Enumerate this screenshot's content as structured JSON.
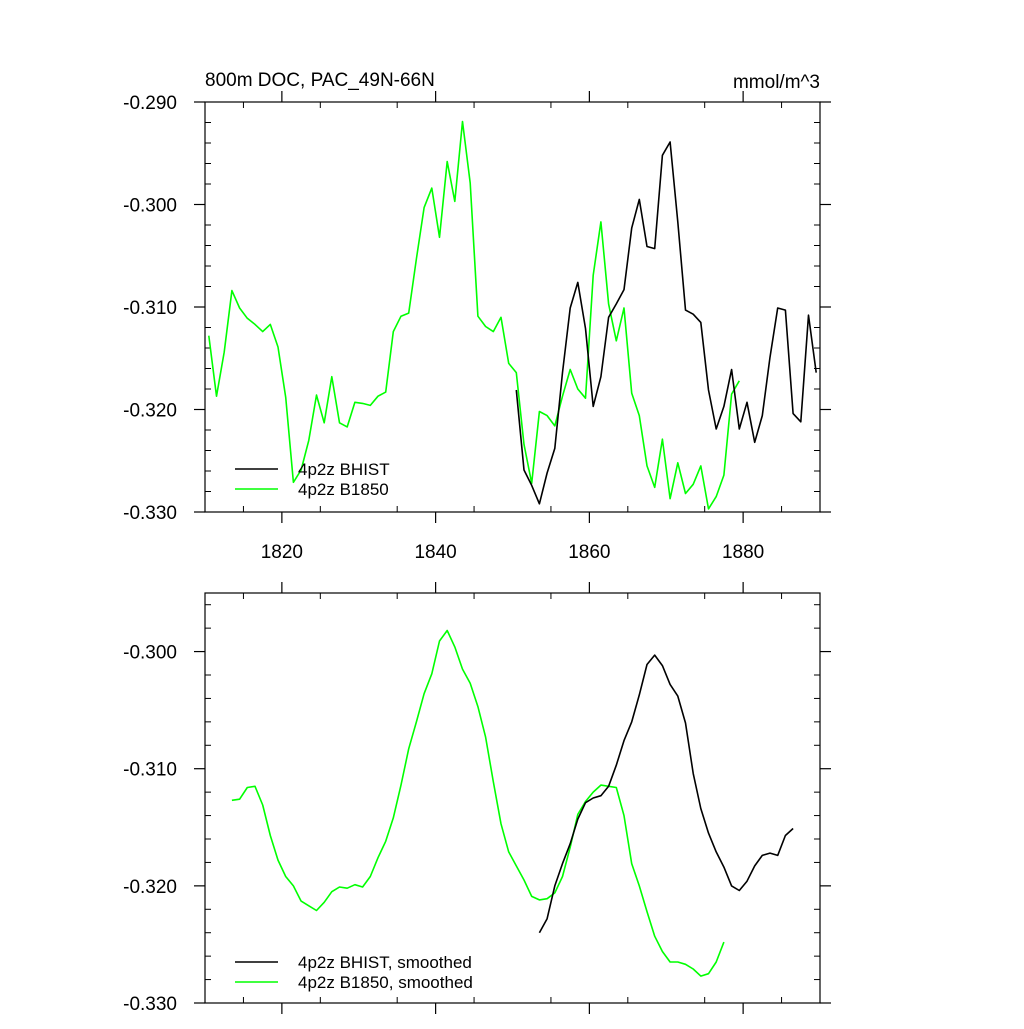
{
  "chart_data": [
    {
      "type": "line",
      "title": "800m DOC, PAC_49N-66N",
      "units_label": "mmol/m^3",
      "xlim": [
        1810,
        1890
      ],
      "ylim": [
        -0.33,
        -0.29
      ],
      "x_ticks": [
        1820,
        1840,
        1860,
        1880
      ],
      "x_tick_labels": [
        "1820",
        "1840",
        "1860",
        "1880"
      ],
      "y_ticks": [
        -0.29,
        -0.3,
        -0.31,
        -0.32,
        -0.33
      ],
      "y_tick_labels": [
        "-0.290",
        "-0.300",
        "-0.310",
        "-0.320",
        "-0.330"
      ],
      "legend_position": "bottom-left",
      "series": [
        {
          "name": "4p2z BHIST",
          "color": "#000000",
          "points": [
            [
              1850.5,
              -0.3181
            ],
            [
              1851.5,
              -0.3259
            ],
            [
              1852.5,
              -0.3274
            ],
            [
              1853.5,
              -0.3292
            ],
            [
              1854.5,
              -0.3262
            ],
            [
              1855.5,
              -0.3238
            ],
            [
              1856.5,
              -0.3164
            ],
            [
              1857.5,
              -0.3101
            ],
            [
              1858.5,
              -0.3076
            ],
            [
              1859.5,
              -0.3121
            ],
            [
              1860.5,
              -0.3197
            ],
            [
              1861.5,
              -0.3168
            ],
            [
              1862.5,
              -0.311
            ],
            [
              1863.5,
              -0.3097
            ],
            [
              1864.5,
              -0.3083
            ],
            [
              1865.5,
              -0.3023
            ],
            [
              1866.5,
              -0.2995
            ],
            [
              1867.5,
              -0.3041
            ],
            [
              1868.5,
              -0.3043
            ],
            [
              1869.5,
              -0.2952
            ],
            [
              1870.5,
              -0.2939
            ],
            [
              1871.5,
              -0.3017
            ],
            [
              1872.5,
              -0.3103
            ],
            [
              1873.5,
              -0.3107
            ],
            [
              1874.5,
              -0.3115
            ],
            [
              1875.5,
              -0.3181
            ],
            [
              1876.5,
              -0.3219
            ],
            [
              1877.5,
              -0.3197
            ],
            [
              1878.5,
              -0.3161
            ],
            [
              1879.5,
              -0.3219
            ],
            [
              1880.5,
              -0.3193
            ],
            [
              1881.5,
              -0.3232
            ],
            [
              1882.5,
              -0.3206
            ],
            [
              1883.5,
              -0.3149
            ],
            [
              1884.5,
              -0.3101
            ],
            [
              1885.5,
              -0.3103
            ],
            [
              1886.5,
              -0.3204
            ],
            [
              1887.5,
              -0.3212
            ],
            [
              1888.5,
              -0.3108
            ],
            [
              1889.5,
              -0.3164
            ]
          ]
        },
        {
          "name": "4p2z B1850",
          "color": "#00ff00",
          "points": [
            [
              1810.5,
              -0.3128
            ],
            [
              1811.5,
              -0.3187
            ],
            [
              1812.5,
              -0.3144
            ],
            [
              1813.5,
              -0.3084
            ],
            [
              1814.5,
              -0.3101
            ],
            [
              1815.5,
              -0.3111
            ],
            [
              1816.5,
              -0.3117
            ],
            [
              1817.5,
              -0.3124
            ],
            [
              1818.5,
              -0.3117
            ],
            [
              1819.5,
              -0.3139
            ],
            [
              1820.5,
              -0.3188
            ],
            [
              1821.5,
              -0.3271
            ],
            [
              1822.5,
              -0.3259
            ],
            [
              1823.5,
              -0.323
            ],
            [
              1824.5,
              -0.3186
            ],
            [
              1825.5,
              -0.3213
            ],
            [
              1826.5,
              -0.3168
            ],
            [
              1827.5,
              -0.3213
            ],
            [
              1828.5,
              -0.3217
            ],
            [
              1829.5,
              -0.3193
            ],
            [
              1830.5,
              -0.3194
            ],
            [
              1831.5,
              -0.3196
            ],
            [
              1832.5,
              -0.3187
            ],
            [
              1833.5,
              -0.3183
            ],
            [
              1834.5,
              -0.3124
            ],
            [
              1835.5,
              -0.3109
            ],
            [
              1836.5,
              -0.3106
            ],
            [
              1837.5,
              -0.3053
            ],
            [
              1838.5,
              -0.3003
            ],
            [
              1839.5,
              -0.2984
            ],
            [
              1840.5,
              -0.3032
            ],
            [
              1841.5,
              -0.2958
            ],
            [
              1842.5,
              -0.2997
            ],
            [
              1843.5,
              -0.2919
            ],
            [
              1844.5,
              -0.2979
            ],
            [
              1845.5,
              -0.3109
            ],
            [
              1846.5,
              -0.3119
            ],
            [
              1847.5,
              -0.3124
            ],
            [
              1848.5,
              -0.311
            ],
            [
              1849.5,
              -0.3155
            ],
            [
              1850.5,
              -0.3164
            ],
            [
              1851.5,
              -0.3234
            ],
            [
              1852.5,
              -0.3272
            ],
            [
              1853.5,
              -0.3202
            ],
            [
              1854.5,
              -0.3206
            ],
            [
              1855.5,
              -0.3216
            ],
            [
              1856.5,
              -0.3187
            ],
            [
              1857.5,
              -0.3161
            ],
            [
              1858.5,
              -0.318
            ],
            [
              1859.5,
              -0.3189
            ],
            [
              1860.5,
              -0.3069
            ],
            [
              1861.5,
              -0.3017
            ],
            [
              1862.5,
              -0.3097
            ],
            [
              1863.5,
              -0.3133
            ],
            [
              1864.5,
              -0.3101
            ],
            [
              1865.5,
              -0.3184
            ],
            [
              1866.5,
              -0.3206
            ],
            [
              1867.5,
              -0.3255
            ],
            [
              1868.5,
              -0.3276
            ],
            [
              1869.5,
              -0.3229
            ],
            [
              1870.5,
              -0.3287
            ],
            [
              1871.5,
              -0.3252
            ],
            [
              1872.5,
              -0.3282
            ],
            [
              1873.5,
              -0.3273
            ],
            [
              1874.5,
              -0.3255
            ],
            [
              1875.5,
              -0.3297
            ],
            [
              1876.5,
              -0.3285
            ],
            [
              1877.5,
              -0.3264
            ],
            [
              1878.5,
              -0.3185
            ],
            [
              1879.5,
              -0.3172
            ]
          ]
        }
      ]
    },
    {
      "type": "line",
      "xlim": [
        1810,
        1890
      ],
      "ylim": [
        -0.33,
        -0.295
      ],
      "x_ticks": [
        1820,
        1840,
        1860,
        1880
      ],
      "y_ticks": [
        -0.3,
        -0.31,
        -0.32,
        -0.33
      ],
      "y_tick_labels": [
        "-0.300",
        "-0.310",
        "-0.320",
        "-0.330"
      ],
      "legend_position": "bottom-left",
      "series": [
        {
          "name": "4p2z BHIST, smoothed",
          "color": "#000000",
          "points": [
            [
              1853.5,
              -0.324
            ],
            [
              1854.5,
              -0.3228
            ],
            [
              1855.5,
              -0.32
            ],
            [
              1856.5,
              -0.3181
            ],
            [
              1857.5,
              -0.3164
            ],
            [
              1858.5,
              -0.3143
            ],
            [
              1859.5,
              -0.3129
            ],
            [
              1860.5,
              -0.3125
            ],
            [
              1861.5,
              -0.3123
            ],
            [
              1862.5,
              -0.3115
            ],
            [
              1863.5,
              -0.3097
            ],
            [
              1864.5,
              -0.3076
            ],
            [
              1865.5,
              -0.306
            ],
            [
              1866.5,
              -0.3037
            ],
            [
              1867.5,
              -0.3011
            ],
            [
              1868.5,
              -0.3003
            ],
            [
              1869.5,
              -0.3012
            ],
            [
              1870.5,
              -0.3028
            ],
            [
              1871.5,
              -0.3038
            ],
            [
              1872.5,
              -0.3061
            ],
            [
              1873.5,
              -0.3104
            ],
            [
              1874.5,
              -0.3134
            ],
            [
              1875.5,
              -0.3155
            ],
            [
              1876.5,
              -0.3171
            ],
            [
              1877.5,
              -0.3184
            ],
            [
              1878.5,
              -0.32
            ],
            [
              1879.5,
              -0.3204
            ],
            [
              1880.5,
              -0.3196
            ],
            [
              1881.5,
              -0.3183
            ],
            [
              1882.5,
              -0.3174
            ],
            [
              1883.5,
              -0.3172
            ],
            [
              1884.5,
              -0.3174
            ],
            [
              1885.5,
              -0.3157
            ],
            [
              1886.5,
              -0.3151
            ]
          ]
        },
        {
          "name": "4p2z B1850, smoothed",
          "color": "#00ff00",
          "points": [
            [
              1813.5,
              -0.3127
            ],
            [
              1814.5,
              -0.3126
            ],
            [
              1815.5,
              -0.3116
            ],
            [
              1816.5,
              -0.3115
            ],
            [
              1817.5,
              -0.3131
            ],
            [
              1818.5,
              -0.3157
            ],
            [
              1819.5,
              -0.3178
            ],
            [
              1820.5,
              -0.3192
            ],
            [
              1821.5,
              -0.32
            ],
            [
              1822.5,
              -0.3213
            ],
            [
              1823.5,
              -0.3217
            ],
            [
              1824.5,
              -0.3221
            ],
            [
              1825.5,
              -0.3214
            ],
            [
              1826.5,
              -0.3205
            ],
            [
              1827.5,
              -0.3201
            ],
            [
              1828.5,
              -0.3202
            ],
            [
              1829.5,
              -0.3199
            ],
            [
              1830.5,
              -0.3201
            ],
            [
              1831.5,
              -0.3192
            ],
            [
              1832.5,
              -0.3176
            ],
            [
              1833.5,
              -0.3162
            ],
            [
              1834.5,
              -0.3142
            ],
            [
              1835.5,
              -0.3114
            ],
            [
              1836.5,
              -0.3083
            ],
            [
              1837.5,
              -0.306
            ],
            [
              1838.5,
              -0.3036
            ],
            [
              1839.5,
              -0.3019
            ],
            [
              1840.5,
              -0.2991
            ],
            [
              1841.5,
              -0.2982
            ],
            [
              1842.5,
              -0.2996
            ],
            [
              1843.5,
              -0.3015
            ],
            [
              1844.5,
              -0.3027
            ],
            [
              1845.5,
              -0.3047
            ],
            [
              1846.5,
              -0.3073
            ],
            [
              1847.5,
              -0.3111
            ],
            [
              1848.5,
              -0.3147
            ],
            [
              1849.5,
              -0.3171
            ],
            [
              1850.5,
              -0.3183
            ],
            [
              1851.5,
              -0.3195
            ],
            [
              1852.5,
              -0.3209
            ],
            [
              1853.5,
              -0.3212
            ],
            [
              1854.5,
              -0.3211
            ],
            [
              1855.5,
              -0.3206
            ],
            [
              1856.5,
              -0.3192
            ],
            [
              1857.5,
              -0.3167
            ],
            [
              1858.5,
              -0.3139
            ],
            [
              1859.5,
              -0.3128
            ],
            [
              1860.5,
              -0.312
            ],
            [
              1861.5,
              -0.3114
            ],
            [
              1862.5,
              -0.3115
            ],
            [
              1863.5,
              -0.3116
            ],
            [
              1864.5,
              -0.314
            ],
            [
              1865.5,
              -0.3181
            ],
            [
              1866.5,
              -0.32
            ],
            [
              1867.5,
              -0.3222
            ],
            [
              1868.5,
              -0.3243
            ],
            [
              1869.5,
              -0.3256
            ],
            [
              1870.5,
              -0.3265
            ],
            [
              1871.5,
              -0.3265
            ],
            [
              1872.5,
              -0.3267
            ],
            [
              1873.5,
              -0.3271
            ],
            [
              1874.5,
              -0.3277
            ],
            [
              1875.5,
              -0.3275
            ],
            [
              1876.5,
              -0.3265
            ],
            [
              1877.5,
              -0.3248
            ]
          ]
        }
      ]
    }
  ]
}
